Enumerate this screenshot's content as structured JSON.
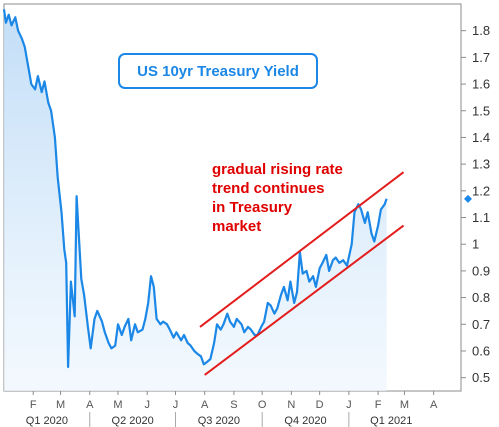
{
  "chart_data": {
    "type": "area",
    "title": "US 10yr Treasury Yield",
    "annotation": [
      "gradual rising rate",
      "trend continues",
      "in Treasury",
      "market"
    ],
    "y_ticks": [
      0.5,
      0.6,
      0.7,
      0.8,
      0.9,
      1,
      1.1,
      1.2,
      1.3,
      1.4,
      1.5,
      1.6,
      1.7,
      1.8
    ],
    "y_tick_labels": [
      "0.5",
      "0.6",
      "0.7",
      "0.8",
      "0.9",
      "1",
      "1.1",
      "1.2",
      "1.3",
      "1.4",
      "1.5",
      "1.6",
      "1.7",
      "1.8"
    ],
    "ylim": [
      0.45,
      1.9
    ],
    "xlim": [
      "2020-01-01",
      "2021-04-30"
    ],
    "x_ticks": [
      {
        "label": "F",
        "date": "2020-02-01"
      },
      {
        "label": "M",
        "date": "2020-03-01"
      },
      {
        "label": "A",
        "date": "2020-04-01"
      },
      {
        "label": "M",
        "date": "2020-05-01"
      },
      {
        "label": "J",
        "date": "2020-06-01"
      },
      {
        "label": "J",
        "date": "2020-07-01"
      },
      {
        "label": "A",
        "date": "2020-08-01"
      },
      {
        "label": "S",
        "date": "2020-09-01"
      },
      {
        "label": "O",
        "date": "2020-10-01"
      },
      {
        "label": "N",
        "date": "2020-11-01"
      },
      {
        "label": "D",
        "date": "2020-12-01"
      },
      {
        "label": "J",
        "date": "2021-01-01"
      },
      {
        "label": "F",
        "date": "2021-02-01"
      },
      {
        "label": "M",
        "date": "2021-03-01"
      },
      {
        "label": "A",
        "date": "2021-04-01"
      }
    ],
    "quarters": [
      {
        "label": "Q1 2020",
        "from": "2020-01-01",
        "to": "2020-04-01"
      },
      {
        "label": "Q2 2020",
        "from": "2020-04-01",
        "to": "2020-07-01"
      },
      {
        "label": "Q3 2020",
        "from": "2020-07-01",
        "to": "2020-10-01"
      },
      {
        "label": "Q4 2020",
        "from": "2020-10-01",
        "to": "2021-01-01"
      },
      {
        "label": "Q1 2021",
        "from": "2021-01-01",
        "to": "2021-04-01"
      }
    ],
    "last_value_marker": 1.17,
    "series": [
      {
        "color": "#1b87e6",
        "x": [
          "2020-01-01",
          "2020-01-03",
          "2020-01-06",
          "2020-01-09",
          "2020-01-13",
          "2020-01-16",
          "2020-01-20",
          "2020-01-23",
          "2020-01-27",
          "2020-01-30",
          "2020-02-03",
          "2020-02-06",
          "2020-02-10",
          "2020-02-13",
          "2020-02-17",
          "2020-02-20",
          "2020-02-24",
          "2020-02-27",
          "2020-03-02",
          "2020-03-05",
          "2020-03-07",
          "2020-03-09",
          "2020-03-12",
          "2020-03-16",
          "2020-03-18",
          "2020-03-20",
          "2020-03-23",
          "2020-03-26",
          "2020-03-30",
          "2020-04-02",
          "2020-04-06",
          "2020-04-09",
          "2020-04-14",
          "2020-04-17",
          "2020-04-21",
          "2020-04-24",
          "2020-04-28",
          "2020-05-01",
          "2020-05-05",
          "2020-05-08",
          "2020-05-12",
          "2020-05-15",
          "2020-05-19",
          "2020-05-22",
          "2020-05-27",
          "2020-05-30",
          "2020-06-02",
          "2020-06-05",
          "2020-06-08",
          "2020-06-11",
          "2020-06-15",
          "2020-06-18",
          "2020-06-22",
          "2020-06-25",
          "2020-06-29",
          "2020-07-02",
          "2020-07-07",
          "2020-07-10",
          "2020-07-14",
          "2020-07-17",
          "2020-07-21",
          "2020-07-24",
          "2020-07-28",
          "2020-07-31",
          "2020-08-04",
          "2020-08-07",
          "2020-08-11",
          "2020-08-14",
          "2020-08-18",
          "2020-08-21",
          "2020-08-25",
          "2020-08-28",
          "2020-09-01",
          "2020-09-04",
          "2020-09-09",
          "2020-09-12",
          "2020-09-16",
          "2020-09-19",
          "2020-09-23",
          "2020-09-26",
          "2020-09-30",
          "2020-10-03",
          "2020-10-07",
          "2020-10-10",
          "2020-10-14",
          "2020-10-17",
          "2020-10-21",
          "2020-10-24",
          "2020-10-28",
          "2020-10-31",
          "2020-11-04",
          "2020-11-07",
          "2020-11-10",
          "2020-11-13",
          "2020-11-17",
          "2020-11-20",
          "2020-11-24",
          "2020-11-27",
          "2020-12-01",
          "2020-12-04",
          "2020-12-08",
          "2020-12-11",
          "2020-12-15",
          "2020-12-18",
          "2020-12-22",
          "2020-12-26",
          "2020-12-30",
          "2021-01-04",
          "2021-01-07",
          "2021-01-11",
          "2021-01-14",
          "2021-01-18",
          "2021-01-21",
          "2021-01-25",
          "2021-01-28",
          "2021-02-01",
          "2021-02-04",
          "2021-02-08",
          "2021-02-10"
        ],
        "y": [
          1.88,
          1.83,
          1.86,
          1.82,
          1.85,
          1.8,
          1.77,
          1.74,
          1.66,
          1.6,
          1.58,
          1.63,
          1.57,
          1.61,
          1.53,
          1.5,
          1.4,
          1.25,
          1.12,
          0.98,
          0.93,
          0.54,
          0.86,
          0.73,
          1.18,
          1.06,
          0.87,
          0.81,
          0.69,
          0.61,
          0.72,
          0.75,
          0.71,
          0.67,
          0.63,
          0.61,
          0.62,
          0.7,
          0.66,
          0.69,
          0.72,
          0.64,
          0.7,
          0.67,
          0.68,
          0.72,
          0.78,
          0.88,
          0.84,
          0.72,
          0.7,
          0.71,
          0.7,
          0.68,
          0.65,
          0.67,
          0.64,
          0.66,
          0.63,
          0.62,
          0.6,
          0.59,
          0.58,
          0.55,
          0.56,
          0.57,
          0.63,
          0.7,
          0.68,
          0.7,
          0.74,
          0.71,
          0.69,
          0.72,
          0.7,
          0.67,
          0.69,
          0.68,
          0.66,
          0.66,
          0.69,
          0.71,
          0.78,
          0.77,
          0.74,
          0.76,
          0.81,
          0.84,
          0.79,
          0.86,
          0.78,
          0.82,
          0.97,
          0.89,
          0.9,
          0.86,
          0.88,
          0.84,
          0.91,
          0.93,
          0.96,
          0.9,
          0.94,
          0.95,
          0.93,
          0.94,
          0.92,
          1.0,
          1.12,
          1.15,
          1.13,
          1.08,
          1.12,
          1.04,
          1.01,
          1.07,
          1.13,
          1.15,
          1.17
        ]
      }
    ]
  }
}
